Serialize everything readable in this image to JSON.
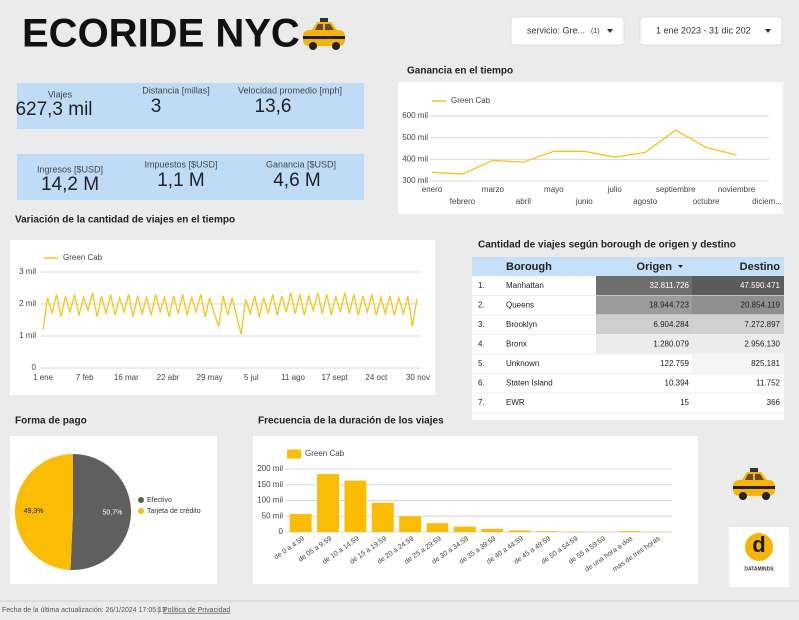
{
  "header": {
    "title": "ECORIDE NYC",
    "filters": [
      {
        "label": "servicio: Gre...",
        "count": "(1)"
      },
      {
        "label": "1 ene 2023 - 31 dic 202"
      }
    ]
  },
  "kpis": [
    [
      {
        "label": "Viajes",
        "value": "627,3 mil"
      },
      {
        "label": "Distancia [millas]",
        "value": "3"
      },
      {
        "label": "Velocidad promedio [mph]",
        "value": "13,6"
      }
    ],
    [
      {
        "label": "Ingresos [$USD]",
        "value": "14,2 M"
      },
      {
        "label": "Impuestos [$USD]",
        "value": "1,1 M"
      },
      {
        "label": "Ganancia [$USD]",
        "value": "4,6 M"
      }
    ]
  ],
  "table": {
    "title": "Cantidad de viajes según borough de origen y destino",
    "columns": [
      "Borough",
      "Origen",
      "Destino"
    ],
    "rows": [
      [
        "1.",
        "Manhattan",
        "32.811.726",
        "47.590.471"
      ],
      [
        "2.",
        "Queens",
        "18.944.723",
        "20.854.119"
      ],
      [
        "3.",
        "Brooklyn",
        "6.904.284",
        "7.272.897"
      ],
      [
        "4.",
        "Bronx",
        "1.280.079",
        "2.956.130"
      ],
      [
        "5.",
        "Unknown",
        "122.759",
        "825.181"
      ],
      [
        "6.",
        "Staten Island",
        "10.394",
        "11.752"
      ],
      [
        "7.",
        "EWR",
        "15",
        "366"
      ]
    ]
  },
  "chart_data": [
    {
      "type": "line",
      "title": "Ganancia en el tiempo",
      "categories": [
        "enero",
        "febrero",
        "marzo",
        "abril",
        "mayo",
        "junio",
        "julio",
        "agosto",
        "septiembre",
        "octubre",
        "noviembre",
        "diciem..."
      ],
      "series": [
        {
          "name": "Green Cab",
          "color": "#f5c518",
          "values": [
            340000,
            332000,
            395000,
            387000,
            437000,
            437000,
            410000,
            432000,
            535000,
            455000,
            420000,
            null
          ]
        }
      ],
      "ylim": [
        300000,
        600000
      ],
      "yticks": [
        {
          "value": 300000,
          "label": "300 mil"
        },
        {
          "value": 400000,
          "label": "400 mil"
        },
        {
          "value": 500000,
          "label": "500 mil"
        },
        {
          "value": 600000,
          "label": "600 mil"
        }
      ],
      "grid": true
    },
    {
      "type": "line",
      "title": "Variación de la cantidad de viajes en el tiempo",
      "x": [
        0,
        4,
        8,
        12,
        16,
        20,
        24,
        28,
        32,
        36,
        40,
        44,
        48,
        52,
        56,
        60,
        64,
        68,
        72,
        76,
        80,
        84,
        88,
        92,
        96,
        100,
        104,
        108,
        112,
        116,
        120,
        124,
        128,
        132,
        136,
        140,
        144,
        148,
        152,
        156,
        160,
        164,
        168,
        172,
        176,
        180,
        184,
        188,
        192,
        196,
        200,
        204,
        208,
        212,
        216,
        220,
        224,
        228,
        232,
        236,
        240,
        244,
        248,
        252,
        256,
        260,
        264,
        268,
        272,
        276,
        280,
        284,
        288,
        292,
        296,
        300,
        304,
        308,
        312,
        316,
        320,
        324,
        328,
        332
      ],
      "series": [
        {
          "name": "Green Cab",
          "color": "#f5c518",
          "values": [
            1200,
            2200,
            1700,
            2300,
            1600,
            2250,
            1750,
            2300,
            1650,
            2200,
            1800,
            2350,
            1600,
            2250,
            1700,
            2300,
            1650,
            2200,
            1750,
            2300,
            1600,
            2250,
            1700,
            2200,
            1650,
            2300,
            1750,
            2200,
            1600,
            2250,
            1700,
            2300,
            1650,
            2200,
            1750,
            2300,
            1600,
            2200,
            1700,
            1300,
            2250,
            1650,
            2200,
            1600,
            1050,
            2150,
            1700,
            2250,
            1600,
            2200,
            1700,
            2300,
            1650,
            2250,
            1750,
            2350,
            1700,
            2300,
            1650,
            2250,
            1800,
            2350,
            1700,
            2300,
            1650,
            2250,
            1750,
            2350,
            1700,
            2300,
            1650,
            2250,
            1750,
            2300,
            1650,
            2200,
            1700,
            2250,
            1650,
            2200,
            1700,
            2250,
            1300,
            2150
          ]
        }
      ],
      "xlim": [
        0,
        333
      ],
      "xticks": [
        {
          "value": 0,
          "label": "1 ene"
        },
        {
          "value": 37,
          "label": "7 feb"
        },
        {
          "value": 74,
          "label": "16 mar"
        },
        {
          "value": 111,
          "label": "22 abr"
        },
        {
          "value": 148,
          "label": "29 may"
        },
        {
          "value": 185,
          "label": "5 jul"
        },
        {
          "value": 222,
          "label": "11 ago"
        },
        {
          "value": 259,
          "label": "17 sept"
        },
        {
          "value": 296,
          "label": "24 oct"
        },
        {
          "value": 333,
          "label": "30 nov"
        }
      ],
      "ylim": [
        0,
        3000
      ],
      "yticks": [
        0,
        {
          "value": 1000,
          "label": "1 mil"
        },
        {
          "value": 2000,
          "label": "2 mil"
        },
        {
          "value": 3000,
          "label": "3 mil"
        }
      ],
      "grid": true
    },
    {
      "type": "pie",
      "title": "Forma de pago",
      "categories": [
        "Efectivo",
        "Tarjeta de crédito"
      ],
      "values": [
        50.7,
        49.3
      ],
      "value_labels": [
        "50,7%",
        "49,3%"
      ],
      "colors": [
        "#5f5f5f",
        "#fbbc04"
      ]
    },
    {
      "type": "bar",
      "title": "Frecuencia de la duración de los viajes",
      "categories": [
        "de 0 a 4:59",
        "de 05 a 9:59",
        "de 10 a 14:59",
        "de 15 a 19:59",
        "de 20 a 24:59",
        "de 25 a 29:59",
        "de 30 a 34:59",
        "de 35 a 39:59",
        "de 40 a 44:59",
        "de 45 a 49:59",
        "de 50 a 54:59",
        "de 55 a 59:59",
        "de una hora a dos",
        "mas de tres horas"
      ],
      "series": [
        {
          "name": "Green Cab",
          "color": "#fbbc04",
          "values": [
            57000,
            184000,
            163000,
            93000,
            50000,
            28000,
            17000,
            10000,
            5000,
            2500,
            1500,
            1000,
            3000,
            1000
          ]
        }
      ],
      "ylim": [
        0,
        200000
      ],
      "yticks": [
        0,
        {
          "value": 50000,
          "label": "50 mil"
        },
        {
          "value": 100000,
          "label": "100 mil"
        },
        {
          "value": 150000,
          "label": "150 mil"
        },
        {
          "value": 200000,
          "label": "200 mil"
        }
      ],
      "grid": true
    }
  ],
  "logo": {
    "mark": "d",
    "name": "DATAMINDS"
  },
  "footer": {
    "updated": "Fecha de la última actualización: 26/1/2024 17:05:13",
    "separator": "|",
    "privacy": "Política de Privacidad"
  }
}
